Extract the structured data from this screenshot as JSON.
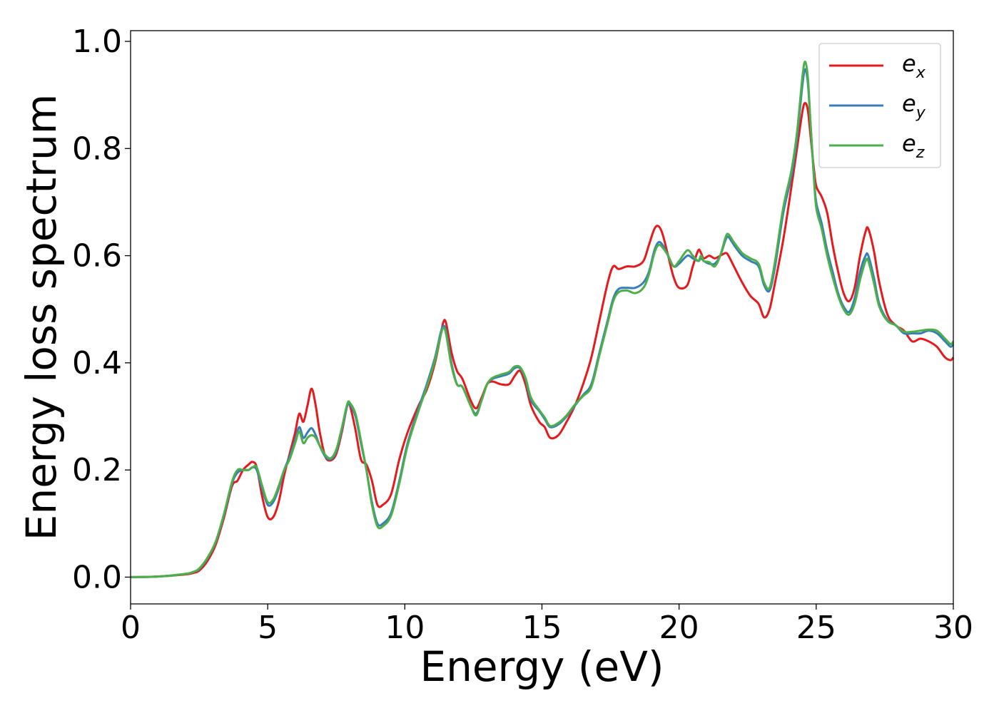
{
  "chart_data": {
    "type": "line",
    "title": "",
    "xlabel": "Energy (eV)",
    "ylabel": "Energy loss spectrum",
    "xlim": [
      0,
      30
    ],
    "ylim": [
      -0.05,
      1.02
    ],
    "xticks": [
      0,
      5,
      10,
      15,
      20,
      25,
      30
    ],
    "xtick_labels": [
      "0",
      "5",
      "10",
      "15",
      "20",
      "25",
      "30"
    ],
    "yticks": [
      0.0,
      0.2,
      0.4,
      0.6,
      0.8,
      1.0
    ],
    "ytick_labels": [
      "0.0",
      "0.2",
      "0.4",
      "0.6",
      "0.8",
      "1.0"
    ],
    "grid": false,
    "legend_position": "top-right",
    "series": [
      {
        "name": "e_x",
        "legend_main": "e",
        "legend_sub": "x",
        "color": "#e41a1c",
        "x": [
          0,
          1,
          2,
          2.3,
          2.5,
          2.8,
          3.1,
          3.4,
          3.7,
          3.9,
          4.1,
          4.3,
          4.45,
          4.6,
          4.8,
          5.0,
          5.2,
          5.4,
          5.6,
          5.8,
          6.0,
          6.15,
          6.3,
          6.45,
          6.6,
          6.75,
          6.9,
          7.1,
          7.3,
          7.5,
          7.7,
          7.9,
          8.0,
          8.2,
          8.4,
          8.6,
          8.8,
          9.0,
          9.2,
          9.5,
          9.8,
          10.1,
          10.5,
          10.8,
          11.1,
          11.3,
          11.4,
          11.5,
          11.7,
          11.9,
          12.1,
          12.4,
          12.6,
          12.8,
          13.0,
          13.2,
          13.5,
          13.8,
          14.0,
          14.2,
          14.4,
          14.6,
          14.9,
          15.1,
          15.3,
          15.6,
          15.9,
          16.2,
          16.5,
          16.8,
          17.1,
          17.4,
          17.6,
          17.8,
          18.1,
          18.4,
          18.7,
          18.9,
          19.1,
          19.25,
          19.4,
          19.6,
          19.8,
          20.0,
          20.3,
          20.5,
          20.7,
          20.8,
          20.9,
          21.1,
          21.3,
          21.5,
          21.7,
          21.8,
          22.0,
          22.3,
          22.6,
          22.9,
          23.1,
          23.3,
          23.5,
          23.8,
          24.1,
          24.3,
          24.5,
          24.6,
          24.7,
          24.8,
          24.9,
          25.0,
          25.2,
          25.4,
          25.6,
          25.8,
          26.0,
          26.2,
          26.4,
          26.6,
          26.8,
          26.9,
          27.1,
          27.3,
          27.6,
          27.9,
          28.2,
          28.5,
          28.8,
          29.1,
          29.4,
          29.7,
          29.9,
          30.0
        ],
        "y": [
          0.0,
          0.001,
          0.005,
          0.008,
          0.012,
          0.03,
          0.06,
          0.11,
          0.17,
          0.18,
          0.2,
          0.21,
          0.215,
          0.205,
          0.15,
          0.112,
          0.112,
          0.14,
          0.19,
          0.23,
          0.27,
          0.305,
          0.29,
          0.32,
          0.352,
          0.32,
          0.27,
          0.225,
          0.218,
          0.23,
          0.27,
          0.32,
          0.32,
          0.275,
          0.22,
          0.21,
          0.18,
          0.135,
          0.135,
          0.155,
          0.22,
          0.27,
          0.32,
          0.35,
          0.4,
          0.45,
          0.475,
          0.475,
          0.42,
          0.385,
          0.37,
          0.33,
          0.315,
          0.335,
          0.36,
          0.365,
          0.36,
          0.36,
          0.375,
          0.385,
          0.36,
          0.32,
          0.29,
          0.28,
          0.26,
          0.265,
          0.29,
          0.32,
          0.36,
          0.41,
          0.48,
          0.55,
          0.58,
          0.575,
          0.58,
          0.58,
          0.59,
          0.62,
          0.65,
          0.655,
          0.64,
          0.6,
          0.56,
          0.54,
          0.545,
          0.58,
          0.61,
          0.605,
          0.595,
          0.6,
          0.595,
          0.6,
          0.605,
          0.6,
          0.58,
          0.55,
          0.525,
          0.51,
          0.485,
          0.5,
          0.55,
          0.63,
          0.73,
          0.8,
          0.87,
          0.885,
          0.87,
          0.82,
          0.77,
          0.73,
          0.71,
          0.68,
          0.62,
          0.57,
          0.53,
          0.515,
          0.54,
          0.6,
          0.645,
          0.65,
          0.61,
          0.55,
          0.49,
          0.47,
          0.46,
          0.44,
          0.445,
          0.44,
          0.43,
          0.41,
          0.405,
          0.41
        ]
      },
      {
        "name": "e_y",
        "legend_main": "e",
        "legend_sub": "y",
        "color": "#377eb8",
        "x": [
          0,
          1,
          2,
          2.3,
          2.5,
          2.8,
          3.1,
          3.4,
          3.7,
          3.9,
          4.1,
          4.3,
          4.45,
          4.6,
          4.8,
          5.0,
          5.2,
          5.4,
          5.6,
          5.8,
          6.0,
          6.15,
          6.3,
          6.45,
          6.6,
          6.75,
          6.9,
          7.1,
          7.3,
          7.5,
          7.7,
          7.9,
          8.0,
          8.2,
          8.4,
          8.6,
          8.8,
          9.0,
          9.2,
          9.5,
          9.8,
          10.1,
          10.5,
          10.8,
          11.1,
          11.3,
          11.4,
          11.5,
          11.7,
          11.9,
          12.1,
          12.4,
          12.6,
          12.8,
          13.0,
          13.2,
          13.5,
          13.8,
          14.0,
          14.2,
          14.4,
          14.6,
          14.9,
          15.1,
          15.3,
          15.6,
          15.9,
          16.2,
          16.5,
          16.8,
          17.1,
          17.4,
          17.6,
          17.8,
          18.1,
          18.4,
          18.7,
          18.9,
          19.1,
          19.25,
          19.4,
          19.6,
          19.8,
          20.0,
          20.3,
          20.5,
          20.7,
          20.8,
          20.9,
          21.1,
          21.3,
          21.5,
          21.7,
          21.8,
          22.0,
          22.3,
          22.6,
          22.9,
          23.1,
          23.3,
          23.5,
          23.8,
          24.1,
          24.3,
          24.5,
          24.6,
          24.7,
          24.8,
          24.9,
          25.0,
          25.2,
          25.4,
          25.6,
          25.8,
          26.0,
          26.2,
          26.4,
          26.6,
          26.8,
          26.9,
          27.1,
          27.3,
          27.6,
          27.9,
          28.2,
          28.5,
          28.8,
          29.1,
          29.4,
          29.7,
          29.9,
          30.0
        ],
        "y": [
          0.0,
          0.001,
          0.006,
          0.01,
          0.015,
          0.035,
          0.065,
          0.115,
          0.175,
          0.195,
          0.2,
          0.2,
          0.205,
          0.2,
          0.165,
          0.135,
          0.14,
          0.165,
          0.2,
          0.225,
          0.255,
          0.28,
          0.26,
          0.27,
          0.278,
          0.265,
          0.245,
          0.225,
          0.22,
          0.235,
          0.275,
          0.32,
          0.322,
          0.3,
          0.25,
          0.2,
          0.14,
          0.1,
          0.1,
          0.12,
          0.18,
          0.25,
          0.315,
          0.36,
          0.41,
          0.455,
          0.468,
          0.46,
          0.4,
          0.36,
          0.355,
          0.32,
          0.305,
          0.33,
          0.36,
          0.37,
          0.375,
          0.38,
          0.39,
          0.39,
          0.37,
          0.33,
          0.31,
          0.295,
          0.28,
          0.285,
          0.3,
          0.32,
          0.34,
          0.36,
          0.42,
          0.48,
          0.52,
          0.538,
          0.54,
          0.54,
          0.55,
          0.57,
          0.61,
          0.625,
          0.62,
          0.6,
          0.58,
          0.585,
          0.6,
          0.595,
          0.59,
          0.595,
          0.59,
          0.585,
          0.585,
          0.6,
          0.63,
          0.635,
          0.62,
          0.6,
          0.59,
          0.58,
          0.545,
          0.535,
          0.58,
          0.68,
          0.75,
          0.82,
          0.92,
          0.948,
          0.92,
          0.84,
          0.76,
          0.7,
          0.66,
          0.61,
          0.57,
          0.53,
          0.505,
          0.495,
          0.52,
          0.57,
          0.6,
          0.6,
          0.56,
          0.51,
          0.48,
          0.47,
          0.455,
          0.455,
          0.455,
          0.46,
          0.455,
          0.44,
          0.43,
          0.435
        ]
      },
      {
        "name": "e_z",
        "legend_main": "e",
        "legend_sub": "z",
        "color": "#4daf4a",
        "x": [
          0,
          1,
          2,
          2.3,
          2.5,
          2.8,
          3.1,
          3.4,
          3.7,
          3.9,
          4.1,
          4.3,
          4.45,
          4.6,
          4.8,
          5.0,
          5.2,
          5.4,
          5.6,
          5.8,
          6.0,
          6.15,
          6.3,
          6.45,
          6.6,
          6.75,
          6.9,
          7.1,
          7.3,
          7.5,
          7.7,
          7.9,
          8.0,
          8.2,
          8.4,
          8.6,
          8.8,
          9.0,
          9.2,
          9.5,
          9.8,
          10.1,
          10.5,
          10.8,
          11.1,
          11.3,
          11.4,
          11.5,
          11.7,
          11.9,
          12.1,
          12.4,
          12.6,
          12.8,
          13.0,
          13.2,
          13.5,
          13.8,
          14.0,
          14.2,
          14.4,
          14.6,
          14.9,
          15.1,
          15.3,
          15.6,
          15.9,
          16.2,
          16.5,
          16.8,
          17.1,
          17.4,
          17.6,
          17.8,
          18.1,
          18.4,
          18.7,
          18.9,
          19.1,
          19.25,
          19.4,
          19.6,
          19.8,
          20.0,
          20.3,
          20.5,
          20.7,
          20.8,
          20.9,
          21.1,
          21.3,
          21.5,
          21.7,
          21.8,
          22.0,
          22.3,
          22.6,
          22.9,
          23.1,
          23.3,
          23.5,
          23.8,
          24.1,
          24.3,
          24.5,
          24.6,
          24.7,
          24.8,
          24.9,
          25.0,
          25.2,
          25.4,
          25.6,
          25.8,
          26.0,
          26.2,
          26.4,
          26.6,
          26.8,
          26.9,
          27.1,
          27.3,
          27.6,
          27.9,
          28.2,
          28.5,
          28.8,
          29.1,
          29.4,
          29.7,
          29.9,
          30.0
        ],
        "y": [
          0.0,
          0.001,
          0.006,
          0.01,
          0.016,
          0.036,
          0.066,
          0.117,
          0.178,
          0.2,
          0.2,
          0.2,
          0.205,
          0.205,
          0.17,
          0.14,
          0.145,
          0.17,
          0.2,
          0.22,
          0.25,
          0.272,
          0.25,
          0.26,
          0.265,
          0.26,
          0.245,
          0.228,
          0.222,
          0.238,
          0.278,
          0.323,
          0.325,
          0.305,
          0.255,
          0.2,
          0.135,
          0.095,
          0.095,
          0.115,
          0.175,
          0.245,
          0.31,
          0.355,
          0.405,
          0.45,
          0.465,
          0.455,
          0.395,
          0.36,
          0.355,
          0.32,
          0.302,
          0.33,
          0.36,
          0.372,
          0.378,
          0.383,
          0.393,
          0.392,
          0.372,
          0.335,
          0.312,
          0.298,
          0.282,
          0.288,
          0.302,
          0.322,
          0.338,
          0.355,
          0.415,
          0.475,
          0.515,
          0.532,
          0.535,
          0.53,
          0.54,
          0.565,
          0.605,
          0.62,
          0.615,
          0.6,
          0.58,
          0.59,
          0.61,
          0.6,
          0.59,
          0.6,
          0.59,
          0.588,
          0.58,
          0.6,
          0.635,
          0.64,
          0.625,
          0.605,
          0.595,
          0.585,
          0.55,
          0.54,
          0.59,
          0.69,
          0.76,
          0.83,
          0.935,
          0.962,
          0.93,
          0.84,
          0.76,
          0.69,
          0.65,
          0.6,
          0.56,
          0.525,
          0.5,
          0.49,
          0.51,
          0.555,
          0.59,
          0.59,
          0.55,
          0.505,
          0.478,
          0.47,
          0.458,
          0.458,
          0.46,
          0.462,
          0.46,
          0.445,
          0.435,
          0.44
        ]
      }
    ]
  }
}
